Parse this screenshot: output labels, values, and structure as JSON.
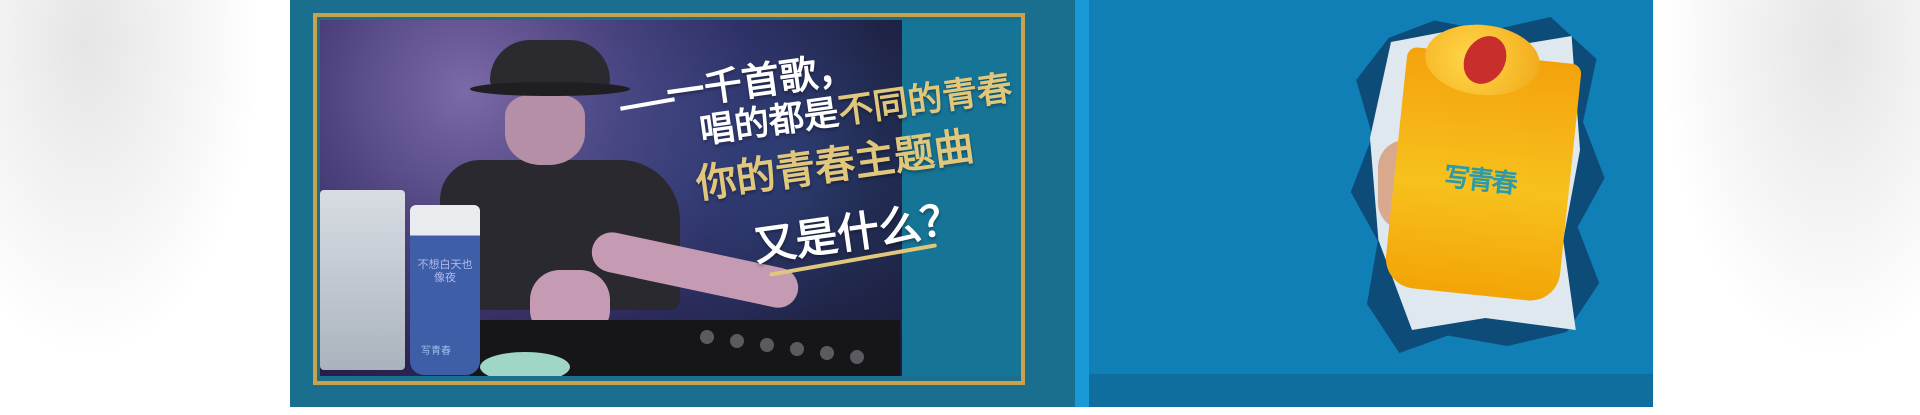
{
  "slogan": {
    "line1": "一千首歌，",
    "line2_white": "唱的都是",
    "line2_gold": "不同的青春",
    "line3": "你的青春主题曲",
    "line4": "又是什么？"
  },
  "cup_left": {
    "text": "不想白天也像夜",
    "logo": "写青春"
  },
  "drink": {
    "logo": "写青春"
  },
  "colors": {
    "panel_left": "#1b6f8e",
    "panel_right": "#0f7fb6",
    "gold": "#c9a24b",
    "gold_text": "#e1c77c"
  }
}
